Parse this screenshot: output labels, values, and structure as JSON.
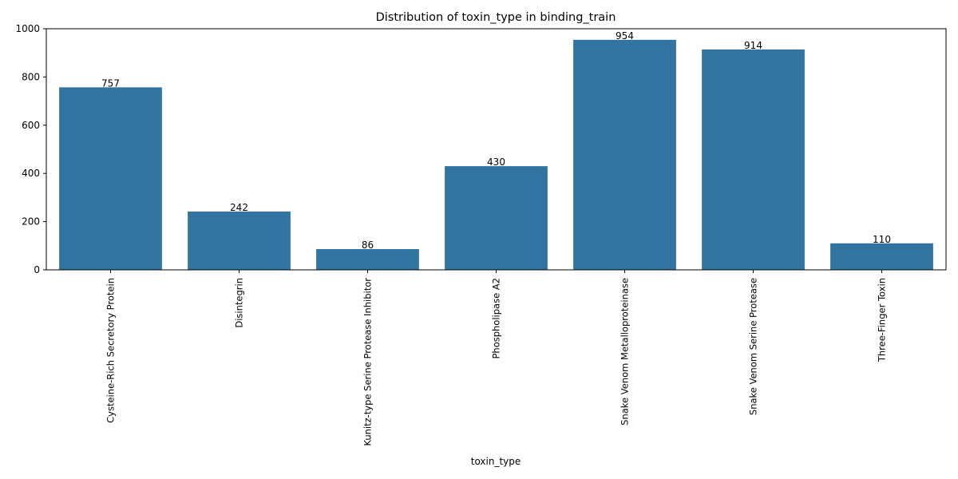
{
  "chart_data": {
    "type": "bar",
    "title": "Distribution of toxin_type in binding_train",
    "xlabel": "toxin_type",
    "ylabel": "",
    "categories": [
      "Cysteine-Rich Secretory Protein",
      "Disintegrin",
      "Kunitz-type Serine Protease Inhibitor",
      "Phospholipase A2",
      "Snake Venom Metalloproteinase",
      "Snake Venom Serine Protease",
      "Three-Finger Toxin"
    ],
    "values": [
      757,
      242,
      86,
      430,
      954,
      914,
      110
    ],
    "ylim": [
      0,
      1000
    ],
    "yticks": [
      0,
      200,
      400,
      600,
      800,
      1000
    ],
    "grid": false,
    "bar_color": "#3274a1"
  }
}
